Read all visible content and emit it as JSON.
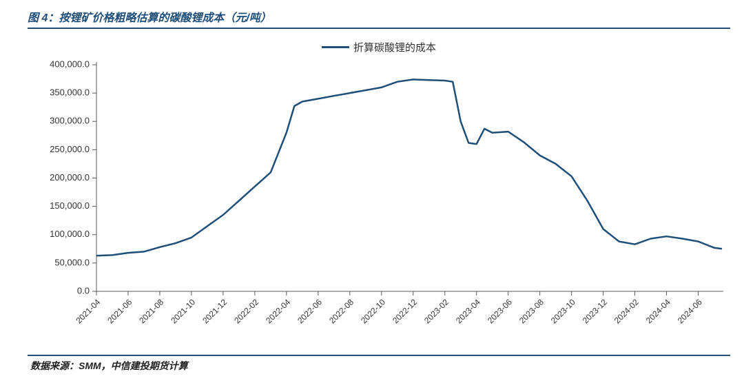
{
  "title": "图 4：按锂矿价格粗略估算的碳酸锂成本（元/吨）",
  "legend_label": "折算碳酸锂的成本",
  "source": "数据来源：SMM，中信建投期货计算",
  "chart": {
    "type": "line",
    "line_color": "#1f4e79",
    "line_width": 2.5,
    "background_color": "#ffffff",
    "axis_color": "#595959",
    "title_color": "#1f4e79",
    "title_fontsize": 16,
    "label_fontsize": 13,
    "xtick_fontsize": 12,
    "xtick_rotation": -45,
    "ylim": [
      0,
      400000
    ],
    "ytick_step": 50000,
    "ytick_format": "comma1dp",
    "x_labels": [
      "2021-04",
      "2021-06",
      "2021-08",
      "2021-10",
      "2021-12",
      "2022-02",
      "2022-04",
      "2022-06",
      "2022-08",
      "2022-10",
      "2022-12",
      "2023-02",
      "2023-04",
      "2023-06",
      "2023-08",
      "2023-10",
      "2023-12",
      "2024-02",
      "2024-04",
      "2024-06"
    ],
    "x_label_step_months": 2,
    "series": [
      {
        "name": "折算碳酸锂的成本",
        "color": "#1f4e79",
        "points": [
          {
            "x": "2021-04",
            "y": 63000
          },
          {
            "x": "2021-05",
            "y": 64000
          },
          {
            "x": "2021-06",
            "y": 68000
          },
          {
            "x": "2021-07",
            "y": 70000
          },
          {
            "x": "2021-08",
            "y": 78000
          },
          {
            "x": "2021-09",
            "y": 85000
          },
          {
            "x": "2021-10",
            "y": 95000
          },
          {
            "x": "2021-11",
            "y": 115000
          },
          {
            "x": "2021-12",
            "y": 135000
          },
          {
            "x": "2022-01",
            "y": 160000
          },
          {
            "x": "2022-02",
            "y": 185000
          },
          {
            "x": "2022-03",
            "y": 210000
          },
          {
            "x": "2022-04",
            "y": 280000
          },
          {
            "x": "2022-04b",
            "y": 327000
          },
          {
            "x": "2022-05",
            "y": 335000
          },
          {
            "x": "2022-06",
            "y": 340000
          },
          {
            "x": "2022-07",
            "y": 345000
          },
          {
            "x": "2022-08",
            "y": 350000
          },
          {
            "x": "2022-09",
            "y": 355000
          },
          {
            "x": "2022-10",
            "y": 360000
          },
          {
            "x": "2022-11",
            "y": 370000
          },
          {
            "x": "2022-12",
            "y": 374000
          },
          {
            "x": "2023-01",
            "y": 373000
          },
          {
            "x": "2023-02",
            "y": 372000
          },
          {
            "x": "2023-02b",
            "y": 370000
          },
          {
            "x": "2023-03",
            "y": 300000
          },
          {
            "x": "2023-03b",
            "y": 262000
          },
          {
            "x": "2023-04",
            "y": 260000
          },
          {
            "x": "2023-04b",
            "y": 287000
          },
          {
            "x": "2023-05",
            "y": 280000
          },
          {
            "x": "2023-06",
            "y": 282000
          },
          {
            "x": "2023-07",
            "y": 263000
          },
          {
            "x": "2023-08",
            "y": 240000
          },
          {
            "x": "2023-09",
            "y": 225000
          },
          {
            "x": "2023-10",
            "y": 203000
          },
          {
            "x": "2023-11",
            "y": 160000
          },
          {
            "x": "2023-12",
            "y": 110000
          },
          {
            "x": "2024-01",
            "y": 88000
          },
          {
            "x": "2024-02",
            "y": 83000
          },
          {
            "x": "2024-03",
            "y": 93000
          },
          {
            "x": "2024-04",
            "y": 97000
          },
          {
            "x": "2024-05",
            "y": 93000
          },
          {
            "x": "2024-06",
            "y": 88000
          },
          {
            "x": "2024-07",
            "y": 77000
          },
          {
            "x": "2024-07b",
            "y": 75000
          }
        ]
      }
    ]
  }
}
